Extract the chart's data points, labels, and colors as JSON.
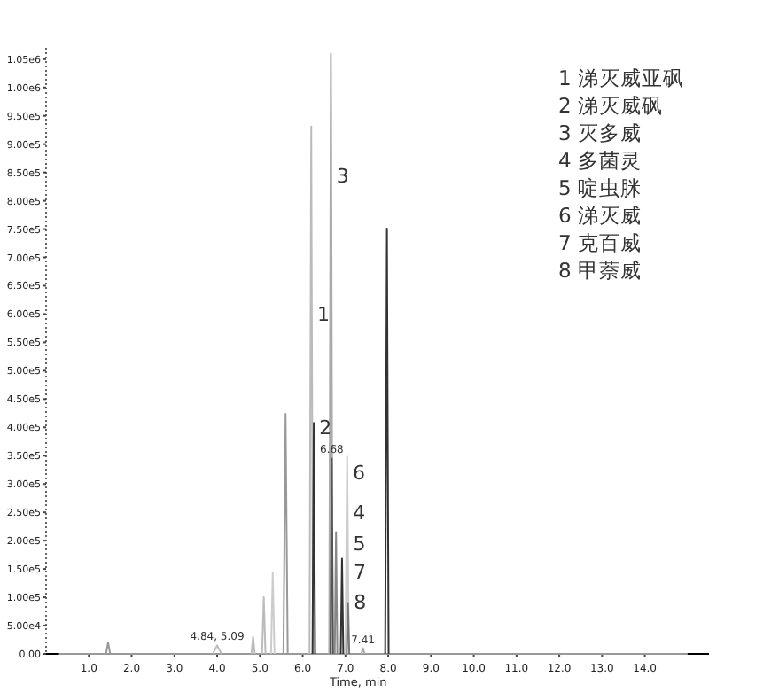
{
  "chart_data": {
    "type": "line",
    "xlabel": "Time, min",
    "xlim": [
      0,
      15.5
    ],
    "ylim": [
      0,
      1070000
    ],
    "xticks": [
      {
        "value": 1,
        "label": "1.0"
      },
      {
        "value": 2,
        "label": "2.0"
      },
      {
        "value": 3,
        "label": "3.0"
      },
      {
        "value": 4,
        "label": "4.0"
      },
      {
        "value": 5,
        "label": "5.0"
      },
      {
        "value": 6,
        "label": "6.0"
      },
      {
        "value": 7,
        "label": "7.0"
      },
      {
        "value": 8,
        "label": "8.0"
      },
      {
        "value": 9,
        "label": "9.0"
      },
      {
        "value": 10,
        "label": "10.0"
      },
      {
        "value": 11,
        "label": "11.0"
      },
      {
        "value": 12,
        "label": "12.0"
      },
      {
        "value": 13,
        "label": "13.0"
      },
      {
        "value": 14,
        "label": "14.0"
      }
    ],
    "yticks": [
      {
        "value": 0,
        "label": "0.00"
      },
      {
        "value": 50000,
        "label": "5.00e4"
      },
      {
        "value": 100000,
        "label": "1.00e5"
      },
      {
        "value": 150000,
        "label": "1.50e5"
      },
      {
        "value": 200000,
        "label": "2.00e5"
      },
      {
        "value": 250000,
        "label": "2.50e5"
      },
      {
        "value": 300000,
        "label": "3.00e5"
      },
      {
        "value": 350000,
        "label": "3.50e5"
      },
      {
        "value": 400000,
        "label": "4.00e5"
      },
      {
        "value": 450000,
        "label": "4.50e5"
      },
      {
        "value": 500000,
        "label": "5.00e5"
      },
      {
        "value": 550000,
        "label": "5.50e5"
      },
      {
        "value": 600000,
        "label": "6.00e5"
      },
      {
        "value": 650000,
        "label": "6.50e5"
      },
      {
        "value": 700000,
        "label": "7.00e5"
      },
      {
        "value": 750000,
        "label": "7.50e5"
      },
      {
        "value": 800000,
        "label": "8.00e5"
      },
      {
        "value": 850000,
        "label": "8.50e5"
      },
      {
        "value": 900000,
        "label": "9.00e5"
      },
      {
        "value": 950000,
        "label": "9.50e5"
      },
      {
        "value": 1000000,
        "label": "1.00e6"
      },
      {
        "value": 1050000,
        "label": "1.05e6"
      }
    ],
    "series": [
      {
        "color": "#999999",
        "x": [
          0.3,
          15.0
        ],
        "values": [
          0,
          0
        ]
      },
      {
        "color": "#999999",
        "x": [
          1.4,
          1.45,
          1.5
        ],
        "values": [
          0,
          20000,
          0
        ]
      },
      {
        "color": "#bbbbbb",
        "x": [
          3.9,
          4.0,
          4.1
        ],
        "values": [
          0,
          15000,
          0
        ]
      },
      {
        "color": "#bbbbbb",
        "x": [
          4.8,
          4.84,
          4.88
        ],
        "values": [
          0,
          30000,
          0
        ]
      },
      {
        "color": "#bbbbbb",
        "x": [
          5.05,
          5.09,
          5.13
        ],
        "values": [
          0,
          100000,
          0
        ]
      },
      {
        "color": "#cccccc",
        "x": [
          5.26,
          5.3,
          5.34
        ],
        "values": [
          0,
          143000,
          0
        ]
      },
      {
        "color": "#999999",
        "x": [
          5.55,
          5.6,
          5.65
        ],
        "values": [
          0,
          424000,
          0
        ]
      },
      {
        "color": "#bbbbbb",
        "x": [
          6.16,
          6.2,
          6.24
        ],
        "values": [
          0,
          931000,
          0
        ]
      },
      {
        "color": "#333333",
        "x": [
          6.23,
          6.26,
          6.29
        ],
        "values": [
          0,
          408000,
          0
        ]
      },
      {
        "color": "#aaaaaa",
        "x": [
          6.62,
          6.66,
          6.7
        ],
        "values": [
          0,
          1060000,
          0
        ]
      },
      {
        "color": "#555555",
        "x": [
          6.65,
          6.68,
          6.71
        ],
        "values": [
          0,
          345000,
          0
        ]
      },
      {
        "color": "#888888",
        "x": [
          6.75,
          6.78,
          6.81
        ],
        "values": [
          0,
          215000,
          0
        ]
      },
      {
        "color": "#333333",
        "x": [
          6.89,
          6.92,
          6.95
        ],
        "values": [
          0,
          168000,
          0
        ]
      },
      {
        "color": "#cccccc",
        "x": [
          7.0,
          7.04,
          7.08
        ],
        "values": [
          0,
          349000,
          0
        ]
      },
      {
        "color": "#777777",
        "x": [
          7.03,
          7.06,
          7.09
        ],
        "values": [
          0,
          90000,
          0
        ]
      },
      {
        "color": "#aaaaaa",
        "x": [
          7.37,
          7.41,
          7.45
        ],
        "values": [
          0,
          10000,
          0
        ]
      },
      {
        "color": "#333333",
        "x": [
          7.93,
          7.97,
          8.01
        ],
        "values": [
          0,
          751000,
          0
        ]
      }
    ],
    "annotations": [
      {
        "text": "1",
        "x": 6.214,
        "y": 600000
      },
      {
        "text": "2",
        "x": 6.261,
        "y": 400000
      },
      {
        "text": "3",
        "x": 6.668,
        "y": 845000
      },
      {
        "text": "4",
        "x": 7.051,
        "y": 250000
      },
      {
        "text": "5",
        "x": 7.058,
        "y": 195000
      },
      {
        "text": "7",
        "x": 7.064,
        "y": 145000
      },
      {
        "text": "8",
        "x": 7.069,
        "y": 93000
      },
      {
        "text": "6",
        "x": 7.043,
        "y": 320000
      },
      {
        "text": "6.68",
        "x": 6.68,
        "y": 345000
      },
      {
        "text": "7.41",
        "x": 7.41,
        "y": 10000
      },
      {
        "text": "4.84, 5.09",
        "x": 4.0,
        "y": 15000
      },
      "1  涕灭威亚砜",
      "2  涕灭威砜",
      "3  灭多威",
      "4  多菌灵",
      "5  啶虫脒",
      "6  涕灭威",
      "7  克百威",
      "8  甲萘威"
    ]
  }
}
